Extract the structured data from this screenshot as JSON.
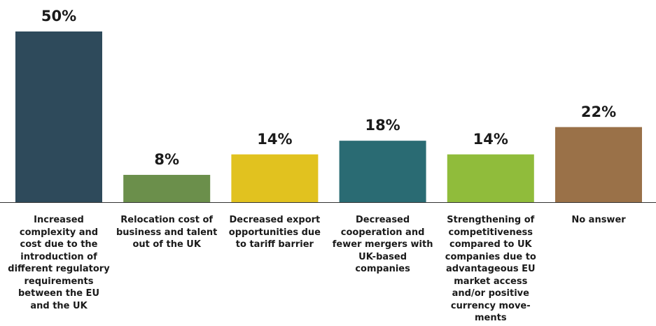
{
  "chart_data": {
    "type": "bar",
    "categories": [
      "Increased complexity and cost due to the introduction of different regulatory requirements between the EU and the UK",
      "Relocation cost of business and talent out of the UK",
      "Decreased export opportunities due to tariff barrier",
      "Decreased cooperation and fewer mergers with UK-based companies",
      "Strengthening of competitiveness compared to UK companies due to advantageous EU market access and/or positive currency move-ments",
      "No answer"
    ],
    "values": [
      50,
      8,
      14,
      18,
      14,
      22
    ],
    "value_labels": [
      "50%",
      "8%",
      "14%",
      "18%",
      "14%",
      "22%"
    ],
    "colors": [
      "#2e4a5b",
      "#6b8f4b",
      "#e1c21f",
      "#2a6b73",
      "#90bc3b",
      "#9a7148"
    ]
  }
}
